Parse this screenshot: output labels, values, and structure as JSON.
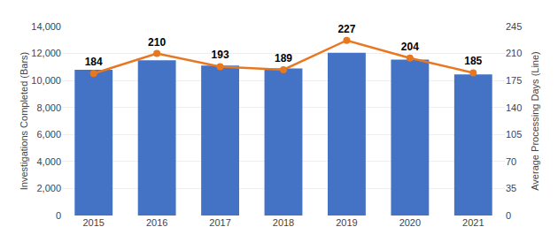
{
  "chart_data": {
    "type": "bar",
    "categories": [
      "2015",
      "2016",
      "2017",
      "2018",
      "2019",
      "2020",
      "2021"
    ],
    "ylabel": "Investigations Completed (Bars)",
    "y2label": "Average Processing Days (Line)",
    "ylim": [
      0,
      14000
    ],
    "yticks": [
      0,
      {
        "value": 2000,
        "label": "2,000"
      },
      {
        "value": 4000,
        "label": "4,000"
      },
      {
        "value": 6000,
        "label": "6,000"
      },
      {
        "value": 8000,
        "label": "8,000"
      },
      {
        "value": 10000,
        "label": "10,000"
      },
      {
        "value": 12000,
        "label": "12,000"
      },
      {
        "value": 14000,
        "label": "14,000"
      }
    ],
    "y2lim": [
      0,
      245
    ],
    "y2ticks": [
      0,
      35,
      70,
      105,
      140,
      175,
      210,
      245
    ],
    "grid": true,
    "series": [
      {
        "type": "bar",
        "color": "#4472C4",
        "values": [
          10800,
          11500,
          11100,
          10900,
          12050,
          11550,
          10450
        ]
      },
      {
        "type": "line",
        "axis": "y2",
        "color": "#E87722",
        "marker": "circle",
        "data_labels": true,
        "values": [
          184,
          210,
          193,
          189,
          227,
          204,
          185
        ]
      }
    ]
  }
}
